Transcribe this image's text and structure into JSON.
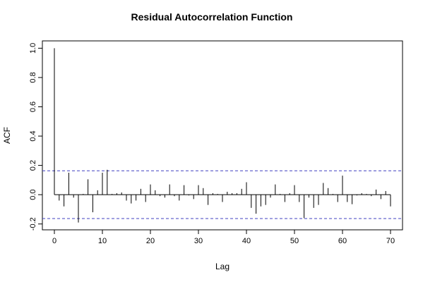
{
  "chart_data": {
    "type": "bar",
    "title": "Residual Autocorrelation Function",
    "xlabel": "Lag",
    "ylabel": "ACF",
    "xlim": [
      -2.5,
      72.5
    ],
    "ylim": [
      -0.24,
      1.05
    ],
    "x_ticks": [
      0,
      10,
      20,
      30,
      40,
      50,
      60,
      70
    ],
    "y_ticks": [
      -0.2,
      0.0,
      0.2,
      0.4,
      0.6,
      0.8,
      1.0
    ],
    "y_tick_labels": [
      "-0.2",
      "0.0",
      "0.2",
      "0.4",
      "0.6",
      "0.8",
      "1.0"
    ],
    "confidence_bound": 0.163,
    "confidence_color": "#4040c0",
    "grid": false,
    "lags": [
      0,
      1,
      2,
      3,
      4,
      5,
      6,
      7,
      8,
      9,
      10,
      11,
      12,
      13,
      14,
      15,
      16,
      17,
      18,
      19,
      20,
      21,
      22,
      23,
      24,
      25,
      26,
      27,
      28,
      29,
      30,
      31,
      32,
      33,
      34,
      35,
      36,
      37,
      38,
      39,
      40,
      41,
      42,
      43,
      44,
      45,
      46,
      47,
      48,
      49,
      50,
      51,
      52,
      53,
      54,
      55,
      56,
      57,
      58,
      59,
      60,
      61,
      62,
      63,
      64,
      65,
      66,
      67,
      68,
      69,
      70
    ],
    "values": [
      1.0,
      -0.04,
      -0.08,
      0.15,
      -0.02,
      -0.19,
      0.005,
      0.105,
      -0.12,
      0.03,
      0.15,
      0.17,
      0.005,
      0.01,
      0.015,
      -0.04,
      -0.06,
      -0.04,
      0.04,
      -0.05,
      0.07,
      0.03,
      -0.01,
      -0.02,
      0.07,
      -0.01,
      -0.04,
      0.065,
      -0.005,
      -0.03,
      0.065,
      0.045,
      -0.07,
      0.01,
      0.005,
      -0.05,
      0.02,
      0.01,
      0.01,
      0.04,
      0.085,
      -0.09,
      -0.13,
      -0.08,
      -0.07,
      -0.02,
      0.07,
      0.005,
      -0.05,
      0.01,
      0.065,
      -0.05,
      -0.16,
      -0.02,
      -0.09,
      -0.07,
      0.08,
      0.045,
      0.005,
      -0.05,
      0.13,
      -0.05,
      -0.065,
      -0.005,
      0.01,
      0.005,
      -0.01,
      0.035,
      -0.03,
      0.025,
      -0.08
    ]
  }
}
